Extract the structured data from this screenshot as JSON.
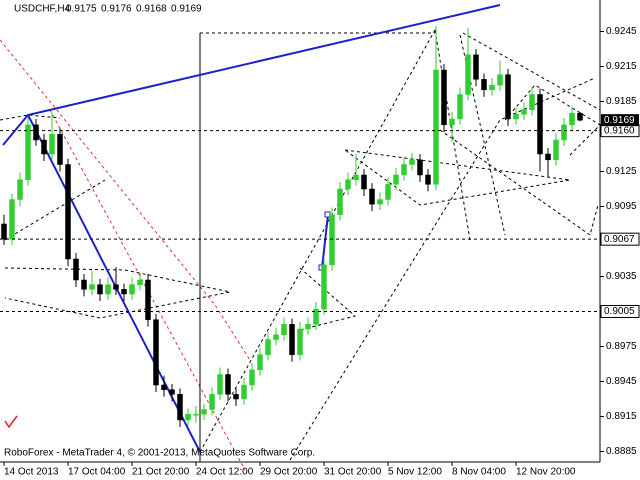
{
  "chart_data": {
    "type": "candlestick",
    "title": "USDCHF,H4",
    "footer": "RoboForex - MetaTrader 4, © 2001-2013, MetaQuotes Software Corp.",
    "up_color": "#32cd32",
    "down_color": "#000000",
    "ylim": [
      0.8876,
      0.9272
    ],
    "yticks": [
      0.9245,
      0.9215,
      0.9185,
      0.9125,
      0.9095,
      0.9035,
      0.8975,
      0.8945,
      0.8915,
      0.8885
    ],
    "levels": [
      {
        "value": 0.916,
        "label": "0.9160"
      },
      0.9067,
      0.9005
    ],
    "categories": [
      "14 Oct 2013",
      null,
      null,
      null,
      null,
      null,
      null,
      null,
      "17 Oct 04:00",
      null,
      null,
      null,
      null,
      null,
      null,
      null,
      "21 Oct 20:00",
      null,
      null,
      null,
      null,
      null,
      null,
      null,
      "24 Oct 12:00",
      null,
      null,
      null,
      null,
      null,
      null,
      null,
      "29 Oct 20:00",
      null,
      null,
      null,
      null,
      null,
      null,
      null,
      "31 Oct 20:00",
      null,
      null,
      null,
      null,
      null,
      null,
      null,
      "5 Nov 12:00",
      null,
      null,
      null,
      null,
      null,
      null,
      null,
      "8 Nov 04:00",
      null,
      null,
      null,
      null,
      null,
      null,
      null,
      "12 Nov 20:00",
      null,
      null,
      null,
      null,
      null,
      null,
      null,
      null
    ],
    "candles": [
      [
        0.908,
        0.9088,
        0.9062,
        0.9067
      ],
      [
        0.9067,
        0.9106,
        0.9062,
        0.9101
      ],
      [
        0.9101,
        0.9124,
        0.9095,
        0.9118
      ],
      [
        0.9118,
        0.9172,
        0.9113,
        0.9165
      ],
      [
        0.9165,
        0.917,
        0.9147,
        0.9152
      ],
      [
        0.9152,
        0.9157,
        0.9134,
        0.914
      ],
      [
        0.914,
        0.9175,
        0.9135,
        0.9157
      ],
      [
        0.9157,
        0.9162,
        0.9125,
        0.9131
      ],
      [
        0.9131,
        0.9136,
        0.9044,
        0.905
      ],
      [
        0.905,
        0.9055,
        0.9026,
        0.9032
      ],
      [
        0.9032,
        0.9037,
        0.9018,
        0.9024
      ],
      [
        0.9024,
        0.904,
        0.9019,
        0.9028
      ],
      [
        0.9028,
        0.9033,
        0.9014,
        0.902
      ],
      [
        0.902,
        0.9034,
        0.9015,
        0.9028
      ],
      [
        0.9028,
        0.9043,
        0.9019,
        0.9024
      ],
      [
        0.9024,
        0.9029,
        0.9014,
        0.902
      ],
      [
        0.902,
        0.9034,
        0.9015,
        0.9028
      ],
      [
        0.9028,
        0.9038,
        0.9023,
        0.9032
      ],
      [
        0.9032,
        0.9037,
        0.8992,
        0.8998
      ],
      [
        0.8998,
        0.9003,
        0.8936,
        0.8942
      ],
      [
        0.8942,
        0.895,
        0.8932,
        0.8938
      ],
      [
        0.8938,
        0.8943,
        0.8928,
        0.8934
      ],
      [
        0.8934,
        0.8939,
        0.8906,
        0.8912
      ],
      [
        0.8912,
        0.8922,
        0.8907,
        0.8917
      ],
      [
        0.8917,
        0.8924,
        0.891,
        0.8917
      ],
      [
        0.8917,
        0.8926,
        0.8912,
        0.8921
      ],
      [
        0.8921,
        0.894,
        0.8916,
        0.8934
      ],
      [
        0.8934,
        0.8957,
        0.8929,
        0.8951
      ],
      [
        0.8951,
        0.8956,
        0.8928,
        0.8934
      ],
      [
        0.8934,
        0.8939,
        0.8924,
        0.893
      ],
      [
        0.893,
        0.8948,
        0.8925,
        0.8942
      ],
      [
        0.8942,
        0.8961,
        0.8937,
        0.8955
      ],
      [
        0.8955,
        0.8974,
        0.895,
        0.8968
      ],
      [
        0.8968,
        0.8987,
        0.8963,
        0.8981
      ],
      [
        0.8981,
        0.8991,
        0.8976,
        0.8985
      ],
      [
        0.8985,
        0.9,
        0.898,
        0.8994
      ],
      [
        0.8994,
        0.8999,
        0.8962,
        0.8968
      ],
      [
        0.8968,
        0.8996,
        0.8963,
        0.899
      ],
      [
        0.899,
        0.9,
        0.8985,
        0.8994
      ],
      [
        0.8994,
        0.9013,
        0.8989,
        0.9007
      ],
      [
        0.9007,
        0.9051,
        0.9002,
        0.9045
      ],
      [
        0.9045,
        0.9094,
        0.904,
        0.9088
      ],
      [
        0.9088,
        0.9116,
        0.9083,
        0.911
      ],
      [
        0.911,
        0.9124,
        0.9105,
        0.9118
      ],
      [
        0.9118,
        0.914,
        0.9113,
        0.9122
      ],
      [
        0.9122,
        0.9127,
        0.9104,
        0.911
      ],
      [
        0.911,
        0.9115,
        0.9091,
        0.9097
      ],
      [
        0.9097,
        0.9107,
        0.9092,
        0.9101
      ],
      [
        0.9101,
        0.912,
        0.9096,
        0.9114
      ],
      [
        0.9114,
        0.9128,
        0.9109,
        0.9122
      ],
      [
        0.9122,
        0.9137,
        0.9117,
        0.9131
      ],
      [
        0.9131,
        0.9141,
        0.9126,
        0.9135
      ],
      [
        0.9135,
        0.914,
        0.9116,
        0.9122
      ],
      [
        0.9122,
        0.9127,
        0.9108,
        0.9114
      ],
      [
        0.9114,
        0.925,
        0.9109,
        0.9212
      ],
      [
        0.9212,
        0.9217,
        0.9159,
        0.9165
      ],
      [
        0.9165,
        0.9176,
        0.915,
        0.917
      ],
      [
        0.917,
        0.9197,
        0.9165,
        0.9191
      ],
      [
        0.9191,
        0.9248,
        0.9186,
        0.9225
      ],
      [
        0.9225,
        0.923,
        0.9198,
        0.9204
      ],
      [
        0.9204,
        0.9209,
        0.9189,
        0.9195
      ],
      [
        0.9195,
        0.9205,
        0.919,
        0.9199
      ],
      [
        0.9199,
        0.922,
        0.9194,
        0.9208
      ],
      [
        0.9208,
        0.9213,
        0.9164,
        0.917
      ],
      [
        0.917,
        0.918,
        0.9165,
        0.9174
      ],
      [
        0.9174,
        0.9184,
        0.9169,
        0.9178
      ],
      [
        0.9178,
        0.9197,
        0.9173,
        0.9191
      ],
      [
        0.9191,
        0.9196,
        0.9125,
        0.914
      ],
      [
        0.914,
        0.9145,
        0.912,
        0.9135
      ],
      [
        0.9135,
        0.9158,
        0.913,
        0.9152
      ],
      [
        0.9152,
        0.9171,
        0.9147,
        0.9165
      ],
      [
        0.9165,
        0.918,
        0.916,
        0.9175
      ],
      [
        0.9175,
        0.9176,
        0.9168,
        0.9169
      ]
    ]
  }
}
